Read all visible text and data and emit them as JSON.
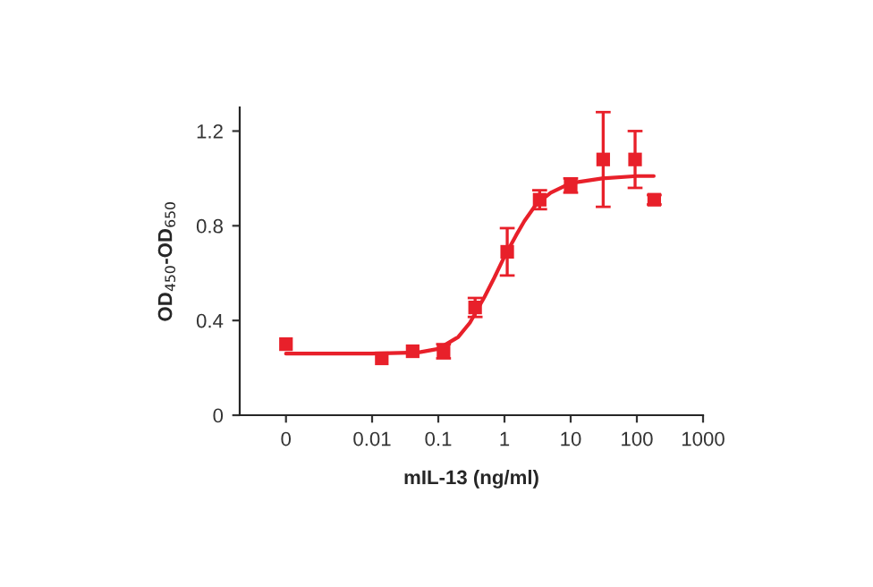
{
  "chart_data": {
    "type": "scatter",
    "xlabel": "mIL-13 (ng/ml)",
    "ylabel": "OD$_{450}$-OD$_{650}$",
    "log": "x",
    "xlim": [
      0.0001,
      1000
    ],
    "xticks": [
      {
        "value": 0.0005,
        "label": "0"
      },
      0.01,
      0.1,
      1,
      10,
      100,
      1000
    ],
    "ylim": [
      0,
      1.3
    ],
    "yticks": [
      0,
      0.4,
      0.8,
      1.2
    ],
    "grid": false,
    "legend": false,
    "marker": "square",
    "series": [
      {
        "color": "#e8202a",
        "x": [
          0.0005,
          0.014,
          0.041,
          0.12,
          0.36,
          1.1,
          3.4,
          10,
          31,
          94,
          183
        ],
        "values": [
          0.3,
          0.24,
          0.27,
          0.27,
          0.455,
          0.69,
          0.91,
          0.97,
          1.08,
          1.08,
          0.91
        ],
        "errors": [
          null,
          null,
          null,
          0.03,
          0.04,
          0.1,
          0.04,
          0.03,
          0.2,
          0.12,
          0.02
        ]
      },
      {
        "type": "line",
        "color": "#e8202a",
        "line_style": "solid",
        "marker": "none",
        "x": [
          0.0005,
          0.01,
          0.05,
          0.1,
          0.2,
          0.3,
          0.5,
          0.7,
          1,
          1.5,
          2,
          3,
          5,
          10,
          30,
          100,
          180
        ],
        "values": [
          0.26,
          0.26,
          0.265,
          0.28,
          0.33,
          0.39,
          0.5,
          0.58,
          0.67,
          0.76,
          0.82,
          0.89,
          0.94,
          0.98,
          1.0,
          1.01,
          1.01
        ]
      }
    ]
  }
}
